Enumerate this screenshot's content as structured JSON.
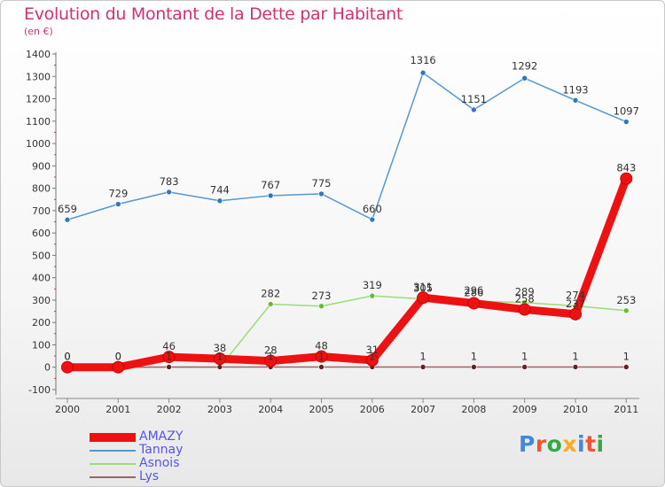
{
  "title": "Evolution du Montant de la Dette par Habitant",
  "subtitle": "(en €)",
  "brand": {
    "text": "Proxiti",
    "colors": [
      "#4488dd",
      "#ee5533",
      "#33aa44",
      "#ffaa22",
      "#4488dd",
      "#ee5533",
      "#33aa44"
    ]
  },
  "chart_data": {
    "type": "line",
    "x": [
      "2000",
      "2001",
      "2002",
      "2003",
      "2004",
      "2005",
      "2006",
      "2007",
      "2008",
      "2009",
      "2010",
      "2011"
    ],
    "ylim": [
      -100,
      1400
    ],
    "yticks": [
      "-100",
      "0",
      "100",
      "200",
      "300",
      "400",
      "500",
      "600",
      "700",
      "800",
      "900",
      "1000",
      "1100",
      "1200",
      "1300",
      "1400"
    ],
    "grid": false,
    "legend_position": "bottom-left",
    "series": [
      {
        "name": "Tannay",
        "color": "#5599cc",
        "marker": "#3377bb",
        "values": [
          659,
          729,
          783,
          744,
          767,
          775,
          660,
          1316,
          1151,
          1292,
          1193,
          1097
        ],
        "labels": [
          "659",
          "729",
          "783",
          "744",
          "767",
          "775",
          "660",
          "1316",
          "1151",
          "1292",
          "1193",
          "1097"
        ]
      },
      {
        "name": "Asnois",
        "color": "#99dd77",
        "marker": "#66bb33",
        "values": [
          null,
          null,
          null,
          null,
          282,
          273,
          319,
          305,
          296,
          289,
          274,
          253
        ],
        "labels": [
          "",
          "",
          "",
          "",
          "282",
          "273",
          "319",
          "305",
          "296",
          "289",
          "274",
          "253"
        ]
      },
      {
        "name": "Lys",
        "color": "#996666",
        "marker": "#662222",
        "values": [
          0,
          0,
          1,
          1,
          1,
          1,
          1,
          1,
          1,
          1,
          1,
          1
        ],
        "labels": [
          "0",
          "0",
          "1",
          "1",
          "1",
          "1",
          "1",
          "1",
          "1",
          "1",
          "1",
          "1"
        ]
      },
      {
        "name": "AMAZY",
        "color": "#ee1111",
        "marker": "#ee1111",
        "values": [
          0,
          0,
          46,
          38,
          28,
          48,
          31,
          311,
          286,
          258,
          237,
          843
        ],
        "labels": [
          "0",
          "0",
          "46",
          "38",
          "28",
          "48",
          "31",
          "311",
          "286",
          "258",
          "237",
          "843"
        ]
      }
    ],
    "legend": [
      "AMAZY",
      "Tannay",
      "Asnois",
      "Lys"
    ]
  }
}
